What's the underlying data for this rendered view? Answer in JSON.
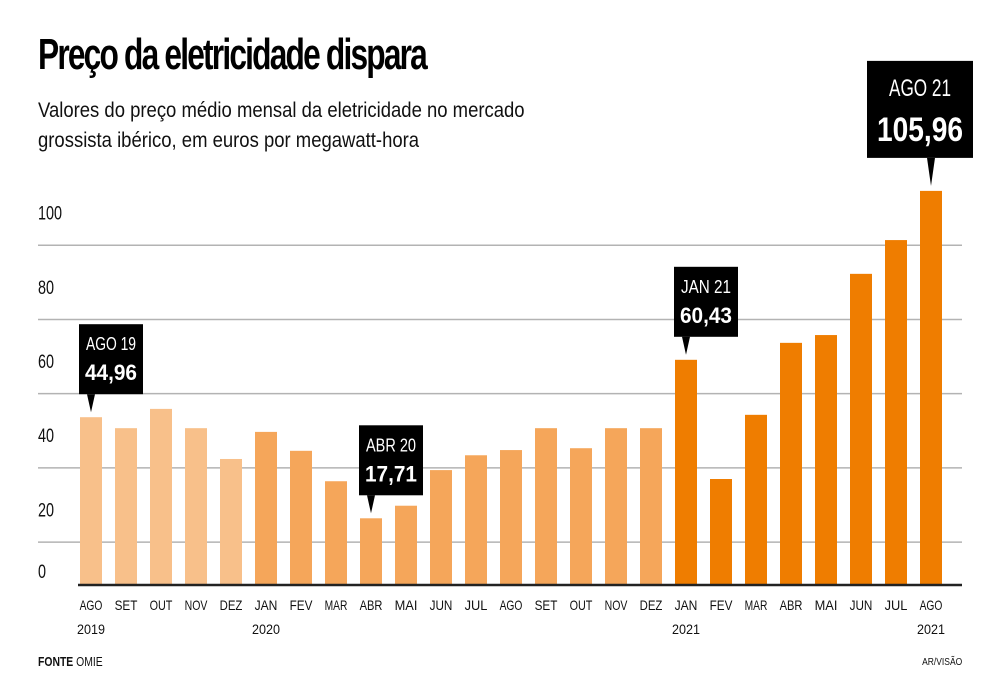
{
  "header": {
    "title": "Preço da eletricidade dispara",
    "subtitle_line1": "Valores do preço médio mensal da eletricidade no mercado",
    "subtitle_line2": "grossista ibérico, em euros por megawatt-hora"
  },
  "footer": {
    "source_label": "FONTE",
    "source_value": "OMIE",
    "credit": "AR/VISÃO"
  },
  "colors": {
    "year_2019": "#F8C08A",
    "year_2020": "#F5A65A",
    "year_2021": "#EF7D00",
    "gridline": "#b3b3b3",
    "axis": "#222222",
    "callout_bg": "#000000"
  },
  "chart_data": {
    "type": "bar",
    "title": "Preço da eletricidade dispara",
    "subtitle": "Valores do preço médio mensal da eletricidade no mercado grossista ibérico, em euros por megawatt-hora",
    "xlabel": "",
    "ylabel": "€/MWh",
    "ylim": [
      0,
      110
    ],
    "yticks": [
      0,
      20,
      40,
      60,
      80,
      100
    ],
    "grid": true,
    "categories": [
      "AGO",
      "SET",
      "OUT",
      "NOV",
      "DEZ",
      "JAN",
      "FEV",
      "MAR",
      "ABR",
      "MAI",
      "JUN",
      "JUL",
      "AGO",
      "SET",
      "OUT",
      "NOV",
      "DEZ",
      "JAN",
      "FEV",
      "MAR",
      "ABR",
      "MAI",
      "JUN",
      "JUL",
      "AGO"
    ],
    "year_labels": [
      "2019",
      "",
      "",
      "",
      "",
      "2020",
      "",
      "",
      "",
      "",
      "",
      "",
      "",
      "",
      "",
      "",
      "",
      "2021",
      "",
      "",
      "",
      "",
      "",
      "",
      "2021"
    ],
    "years": [
      "2019",
      "2019",
      "2019",
      "2019",
      "2019",
      "2020",
      "2020",
      "2020",
      "2020",
      "2020",
      "2020",
      "2020",
      "2020",
      "2020",
      "2020",
      "2020",
      "2020",
      "2021",
      "2021",
      "2021",
      "2021",
      "2021",
      "2021",
      "2021",
      "2021"
    ],
    "values": [
      44.96,
      42.0,
      47.2,
      42.0,
      33.7,
      41.0,
      35.9,
      27.7,
      17.71,
      21.1,
      30.7,
      34.7,
      36.1,
      42.0,
      36.6,
      42.0,
      42.0,
      60.43,
      28.3,
      45.6,
      65.0,
      67.1,
      83.6,
      92.7,
      105.96
    ],
    "annotations": [
      {
        "index": 0,
        "label": "AGO 19",
        "value_text": "44,96"
      },
      {
        "index": 8,
        "label": "ABR 20",
        "value_text": "17,71"
      },
      {
        "index": 17,
        "label": "JAN 21",
        "value_text": "60,43"
      },
      {
        "index": 24,
        "label": "AGO 21",
        "value_text": "105,96"
      }
    ]
  }
}
